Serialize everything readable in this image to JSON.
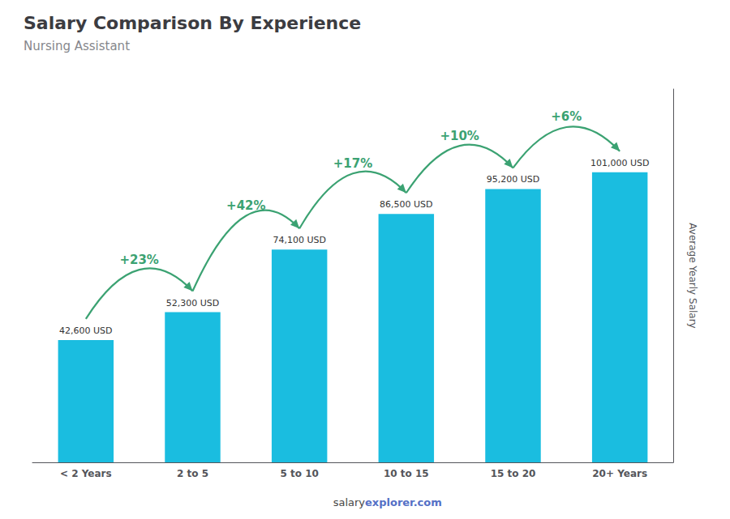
{
  "chart_data": {
    "type": "bar",
    "title": "Salary Comparison By Experience",
    "subtitle": "Nursing Assistant",
    "ylabel": "Average Yearly Salary",
    "categories": [
      "< 2 Years",
      "2 to 5",
      "5 to 10",
      "10 to 15",
      "15 to 20",
      "20+ Years"
    ],
    "values": [
      42600,
      52300,
      74100,
      86500,
      95200,
      101000
    ],
    "value_labels": [
      "42,600 USD",
      "52,300 USD",
      "74,100 USD",
      "86,500 USD",
      "95,200 USD",
      "101,000 USD"
    ],
    "data_labels": true,
    "color": "#1ABDE0",
    "annotations": [
      "+23%",
      "+42%",
      "+17%",
      "+10%",
      "+6%"
    ],
    "footer": [
      "salary",
      "explorer.com"
    ],
    "ylim": [
      0,
      130000
    ],
    "grid": false,
    "tick_labels": "x"
  }
}
